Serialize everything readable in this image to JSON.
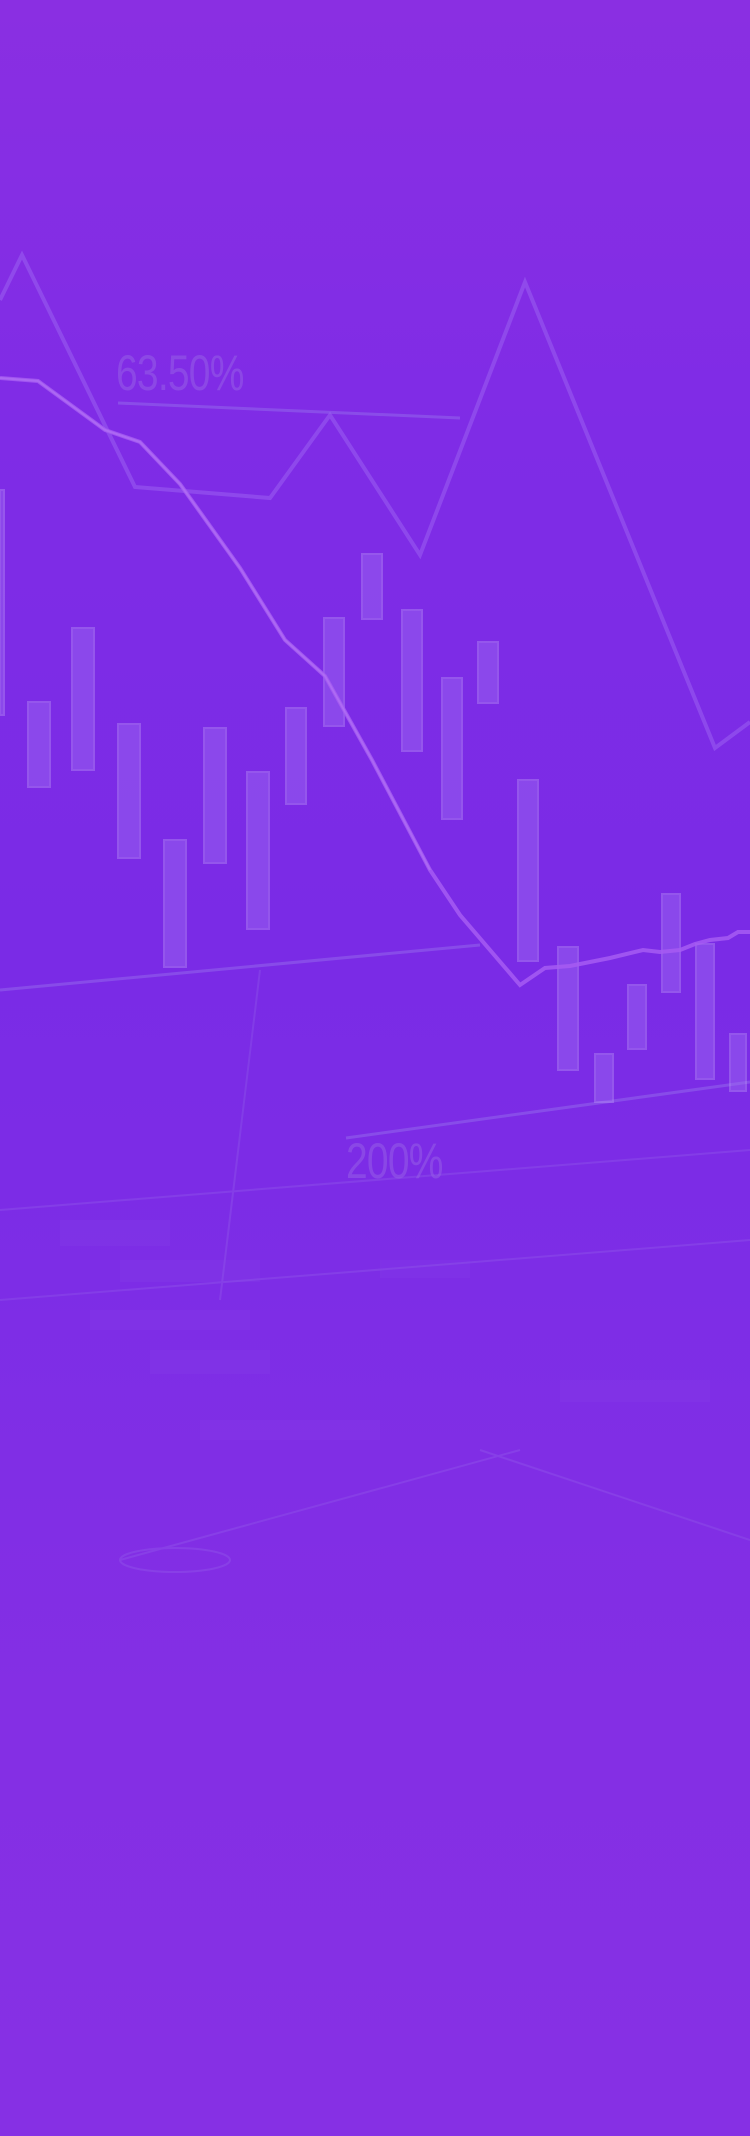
{
  "background": {
    "colors": {
      "top": "#8a2fe2",
      "middle": "#7a2be6",
      "bottom": "#8630e4"
    },
    "labels": {
      "first": "63.50%",
      "second": "200%"
    }
  }
}
